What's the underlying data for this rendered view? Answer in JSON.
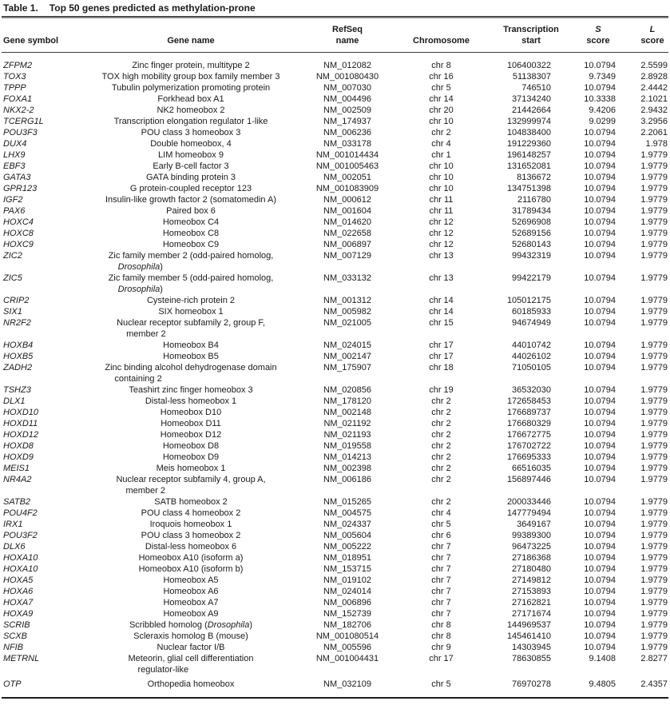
{
  "title": {
    "label": "Table 1.",
    "text": "Top 50 genes predicted as methylation-prone"
  },
  "table": {
    "italic_terms": [
      "Drosophila"
    ],
    "columns": [
      {
        "id": "symbol",
        "header_line1": "",
        "header_line2": "Gene symbol",
        "italic1": false
      },
      {
        "id": "name",
        "header_line1": "",
        "header_line2": "Gene name",
        "italic1": false
      },
      {
        "id": "refseq",
        "header_line1": "RefSeq",
        "header_line2": "name",
        "italic1": false
      },
      {
        "id": "chromosome",
        "header_line1": "",
        "header_line2": "Chromosome",
        "italic1": false
      },
      {
        "id": "tss",
        "header_line1": "Transcription",
        "header_line2": "start",
        "italic1": false
      },
      {
        "id": "s",
        "header_line1": "S",
        "header_line2": "score",
        "italic1": true
      },
      {
        "id": "l",
        "header_line1": "L",
        "header_line2": "score",
        "italic1": true
      }
    ],
    "rows": [
      [
        "ZFPM2",
        "Zinc finger protein, multitype 2",
        "NM_012082",
        "chr 8",
        "106400322",
        "10.0794",
        "2.5599"
      ],
      [
        "TOX3",
        "TOX high mobility group box family member 3",
        "NM_001080430",
        "chr 16",
        "51138307",
        "9.7349",
        "2.8928"
      ],
      [
        "TPPP",
        "Tubulin polymerization promoting protein",
        "NM_007030",
        "chr 5",
        "746510",
        "10.0794",
        "2.4442"
      ],
      [
        "FOXA1",
        "Forkhead box A1",
        "NM_004496",
        "chr 14",
        "37134240",
        "10.3338",
        "2.1021"
      ],
      [
        "NKX2-2",
        "NK2 homeobox 2",
        "NM_002509",
        "chr 20",
        "21442664",
        "9.4206",
        "2.9432"
      ],
      [
        "TCERG1L",
        "Transcription elongation regulator 1-like",
        "NM_174937",
        "chr 10",
        "132999974",
        "9.0299",
        "3.2956"
      ],
      [
        "POU3F3",
        "POU class 3 homeobox 3",
        "NM_006236",
        "chr 2",
        "104838400",
        "10.0794",
        "2.2061"
      ],
      [
        "DUX4",
        "Double homeobox, 4",
        "NM_033178",
        "chr 4",
        "191229360",
        "10.0794",
        "1.978"
      ],
      [
        "LHX9",
        "LIM homeobox 9",
        "NM_001014434",
        "chr 1",
        "196148257",
        "10.0794",
        "1.9779"
      ],
      [
        "EBF3",
        "Early B-cell factor 3",
        "NM_001005463",
        "chr 10",
        "131652081",
        "10.0794",
        "1.9779"
      ],
      [
        "GATA3",
        "GATA binding protein 3",
        "NM_002051",
        "chr 10",
        "8136672",
        "10.0794",
        "1.9779"
      ],
      [
        "GPR123",
        "G protein-coupled receptor 123",
        "NM_001083909",
        "chr 10",
        "134751398",
        "10.0794",
        "1.9779"
      ],
      [
        "IGF2",
        "Insulin-like growth factor 2 (somatomedin A)",
        "NM_000612",
        "chr 11",
        "2116780",
        "10.0794",
        "1.9779"
      ],
      [
        "PAX6",
        "Paired box 6",
        "NM_001604",
        "chr 11",
        "31789434",
        "10.0794",
        "1.9779"
      ],
      [
        "HOXC4",
        "Homeobox C4",
        "NM_014620",
        "chr 12",
        "52696908",
        "10.0794",
        "1.9779"
      ],
      [
        "HOXC8",
        "Homeobox C8",
        "NM_022658",
        "chr 12",
        "52689156",
        "10.0794",
        "1.9779"
      ],
      [
        "HOXC9",
        "Homeobox C9",
        "NM_006897",
        "chr 12",
        "52680143",
        "10.0794",
        "1.9779"
      ],
      [
        "ZIC2",
        "Zic family member 2 (odd-paired homolog,\nDrosophila)",
        "NM_007129",
        "chr 13",
        "99432319",
        "10.0794",
        "1.9779"
      ],
      [
        "ZIC5",
        "Zic family member 5 (odd-paired homolog,\nDrosophila)",
        "NM_033132",
        "chr 13",
        "99422179",
        "10.0794",
        "1.9779"
      ],
      [
        "CRIP2",
        "Cysteine-rich protein 2",
        "NM_001312",
        "chr 14",
        "105012175",
        "10.0794",
        "1.9779"
      ],
      [
        "SIX1",
        "SIX homeobox 1",
        "NM_005982",
        "chr 14",
        "60185933",
        "10.0794",
        "1.9779"
      ],
      [
        "NR2F2",
        "Nuclear receptor subfamily 2, group F,\nmember 2",
        "NM_021005",
        "chr 15",
        "94674949",
        "10.0794",
        "1.9779"
      ],
      [
        "HOXB4",
        "Homeobox B4",
        "NM_024015",
        "chr 17",
        "44010742",
        "10.0794",
        "1.9779"
      ],
      [
        "HOXB5",
        "Homeobox B5",
        "NM_002147",
        "chr 17",
        "44026102",
        "10.0794",
        "1.9779"
      ],
      [
        "ZADH2",
        "Zinc binding alcohol dehydrogenase domain\ncontaining 2",
        "NM_175907",
        "chr 18",
        "71050105",
        "10.0794",
        "1.9779"
      ],
      [
        "TSHZ3",
        "Teashirt zinc finger homeobox 3",
        "NM_020856",
        "chr 19",
        "36532030",
        "10.0794",
        "1.9779"
      ],
      [
        "DLX1",
        "Distal-less homeobox 1",
        "NM_178120",
        "chr 2",
        "172658453",
        "10.0794",
        "1.9779"
      ],
      [
        "HOXD10",
        "Homeobox D10",
        "NM_002148",
        "chr 2",
        "176689737",
        "10.0794",
        "1.9779"
      ],
      [
        "HOXD11",
        "Homeobox D11",
        "NM_021192",
        "chr 2",
        "176680329",
        "10.0794",
        "1.9779"
      ],
      [
        "HOXD12",
        "Homeobox D12",
        "NM_021193",
        "chr 2",
        "176672775",
        "10.0794",
        "1.9779"
      ],
      [
        "HOXD8",
        "Homeobox D8",
        "NM_019558",
        "chr 2",
        "176702722",
        "10.0794",
        "1.9779"
      ],
      [
        "HOXD9",
        "Homeobox D9",
        "NM_014213",
        "chr 2",
        "176695333",
        "10.0794",
        "1.9779"
      ],
      [
        "MEIS1",
        "Meis homeobox 1",
        "NM_002398",
        "chr 2",
        "66516035",
        "10.0794",
        "1.9779"
      ],
      [
        "NR4A2",
        "Nuclear receptor subfamily 4, group A,\nmember 2",
        "NM_006186",
        "chr 2",
        "156897446",
        "10.0794",
        "1.9779"
      ],
      [
        "SATB2",
        "SATB homeobox 2",
        "NM_015265",
        "chr 2",
        "200033446",
        "10.0794",
        "1.9779"
      ],
      [
        "POU4F2",
        "POU class 4 homeobox 2",
        "NM_004575",
        "chr 4",
        "147779494",
        "10.0794",
        "1.9779"
      ],
      [
        "IRX1",
        "Iroquois homeobox 1",
        "NM_024337",
        "chr 5",
        "3649167",
        "10.0794",
        "1.9779"
      ],
      [
        "POU3F2",
        "POU class 3 homeobox 2",
        "NM_005604",
        "chr 6",
        "99389300",
        "10.0794",
        "1.9779"
      ],
      [
        "DLX6",
        "Distal-less homeobox 6",
        "NM_005222",
        "chr 7",
        "96473225",
        "10.0794",
        "1.9779"
      ],
      [
        "HOXA10",
        "Homeobox A10 (isoform a)",
        "NM_018951",
        "chr 7",
        "27186368",
        "10.0794",
        "1.9779"
      ],
      [
        "HOXA10",
        "Homeobox A10 (isoform b)",
        "NM_153715",
        "chr 7",
        "27180480",
        "10.0794",
        "1.9779"
      ],
      [
        "HOXA5",
        "Homeobox A5",
        "NM_019102",
        "chr 7",
        "27149812",
        "10.0794",
        "1.9779"
      ],
      [
        "HOXA6",
        "Homeobox A6",
        "NM_024014",
        "chr 7",
        "27153893",
        "10.0794",
        "1.9779"
      ],
      [
        "HOXA7",
        "Homeobox A7",
        "NM_006896",
        "chr 7",
        "27162821",
        "10.0794",
        "1.9779"
      ],
      [
        "HOXA9",
        "Homeobox A9",
        "NM_152739",
        "chr 7",
        "27171674",
        "10.0794",
        "1.9779"
      ],
      [
        "SCRIB",
        "Scribbled homolog (Drosophila)",
        "NM_182706",
        "chr 8",
        "144969537",
        "10.0794",
        "1.9779"
      ],
      [
        "SCXB",
        "Scleraxis homolog B (mouse)",
        "NM_001080514",
        "chr 8",
        "145461410",
        "10.0794",
        "1.9779"
      ],
      [
        "NFIB",
        "Nuclear factor I/B",
        "NM_005596",
        "chr 9",
        "14303945",
        "10.0794",
        "1.9779"
      ],
      [
        "METRNL",
        "Meteorin, glial cell differentiation\nregulator-like",
        "NM_001004431",
        "chr 17",
        "78630855",
        "9.1408",
        "2.8277"
      ],
      [
        "OTP",
        "Orthopedia homeobox",
        "NM_032109",
        "chr 5",
        "76970278",
        "9.4805",
        "2.4357"
      ]
    ]
  }
}
